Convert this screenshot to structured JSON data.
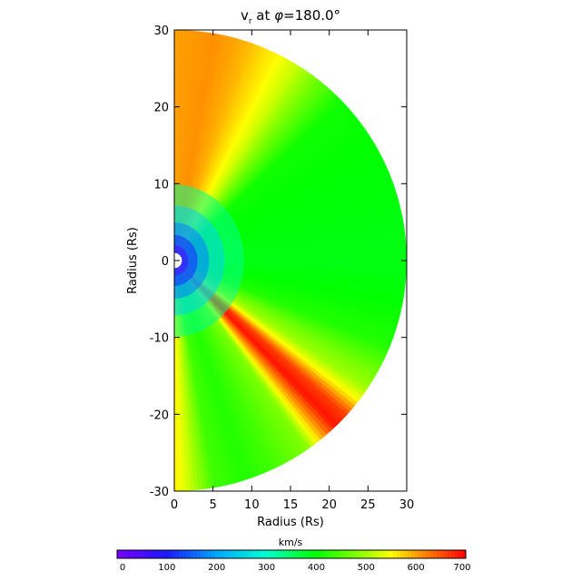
{
  "chart_data": {
    "type": "heatmap",
    "title_main": "v",
    "title_sub": "r",
    "title_rest": " at ",
    "title_phi": "φ",
    "title_value": "=180.0°",
    "xlabel": "Radius (Rs)",
    "ylabel": "Radius (Rs)",
    "xlim": [
      0,
      30
    ],
    "ylim": [
      -30,
      30
    ],
    "xticks": [
      0,
      5,
      10,
      15,
      20,
      25,
      30
    ],
    "yticks": [
      -30,
      -20,
      -10,
      0,
      10,
      20,
      30
    ],
    "domain_radius": 30,
    "inner_radius": 0.7,
    "colorbar": {
      "label": "km/s",
      "range": [
        0,
        700
      ],
      "ticks": [
        0,
        100,
        200,
        300,
        400,
        500,
        600,
        700
      ],
      "stops": [
        {
          "v": 0,
          "color": "#7a00ff"
        },
        {
          "v": 100,
          "color": "#1a1aff"
        },
        {
          "v": 200,
          "color": "#00a8ff"
        },
        {
          "v": 300,
          "color": "#00ffd0"
        },
        {
          "v": 350,
          "color": "#00ff60"
        },
        {
          "v": 400,
          "color": "#00ff00"
        },
        {
          "v": 500,
          "color": "#a0ff00"
        },
        {
          "v": 550,
          "color": "#ffff00"
        },
        {
          "v": 600,
          "color": "#ffa000"
        },
        {
          "v": 700,
          "color": "#ff0000"
        }
      ]
    },
    "angular_profile": [
      {
        "angle_deg": -90,
        "v_kms": 560
      },
      {
        "angle_deg": -86,
        "v_kms": 520
      },
      {
        "angle_deg": -80,
        "v_kms": 440
      },
      {
        "angle_deg": -72,
        "v_kms": 420
      },
      {
        "angle_deg": -65,
        "v_kms": 440
      },
      {
        "angle_deg": -55,
        "v_kms": 480
      },
      {
        "angle_deg": -50,
        "v_kms": 600
      },
      {
        "angle_deg": -46,
        "v_kms": 690
      },
      {
        "angle_deg": -42,
        "v_kms": 660
      },
      {
        "angle_deg": -38,
        "v_kms": 560
      },
      {
        "angle_deg": -34,
        "v_kms": 500
      },
      {
        "angle_deg": -29,
        "v_kms": 470
      },
      {
        "angle_deg": -22,
        "v_kms": 420
      },
      {
        "angle_deg": -10,
        "v_kms": 400
      },
      {
        "angle_deg": 0,
        "v_kms": 390
      },
      {
        "angle_deg": 15,
        "v_kms": 395
      },
      {
        "angle_deg": 30,
        "v_kms": 400
      },
      {
        "angle_deg": 44,
        "v_kms": 410
      },
      {
        "angle_deg": 52,
        "v_kms": 470
      },
      {
        "angle_deg": 58,
        "v_kms": 520
      },
      {
        "angle_deg": 64,
        "v_kms": 555
      },
      {
        "angle_deg": 72,
        "v_kms": 590
      },
      {
        "angle_deg": 80,
        "v_kms": 610
      },
      {
        "angle_deg": 90,
        "v_kms": 600
      }
    ]
  }
}
